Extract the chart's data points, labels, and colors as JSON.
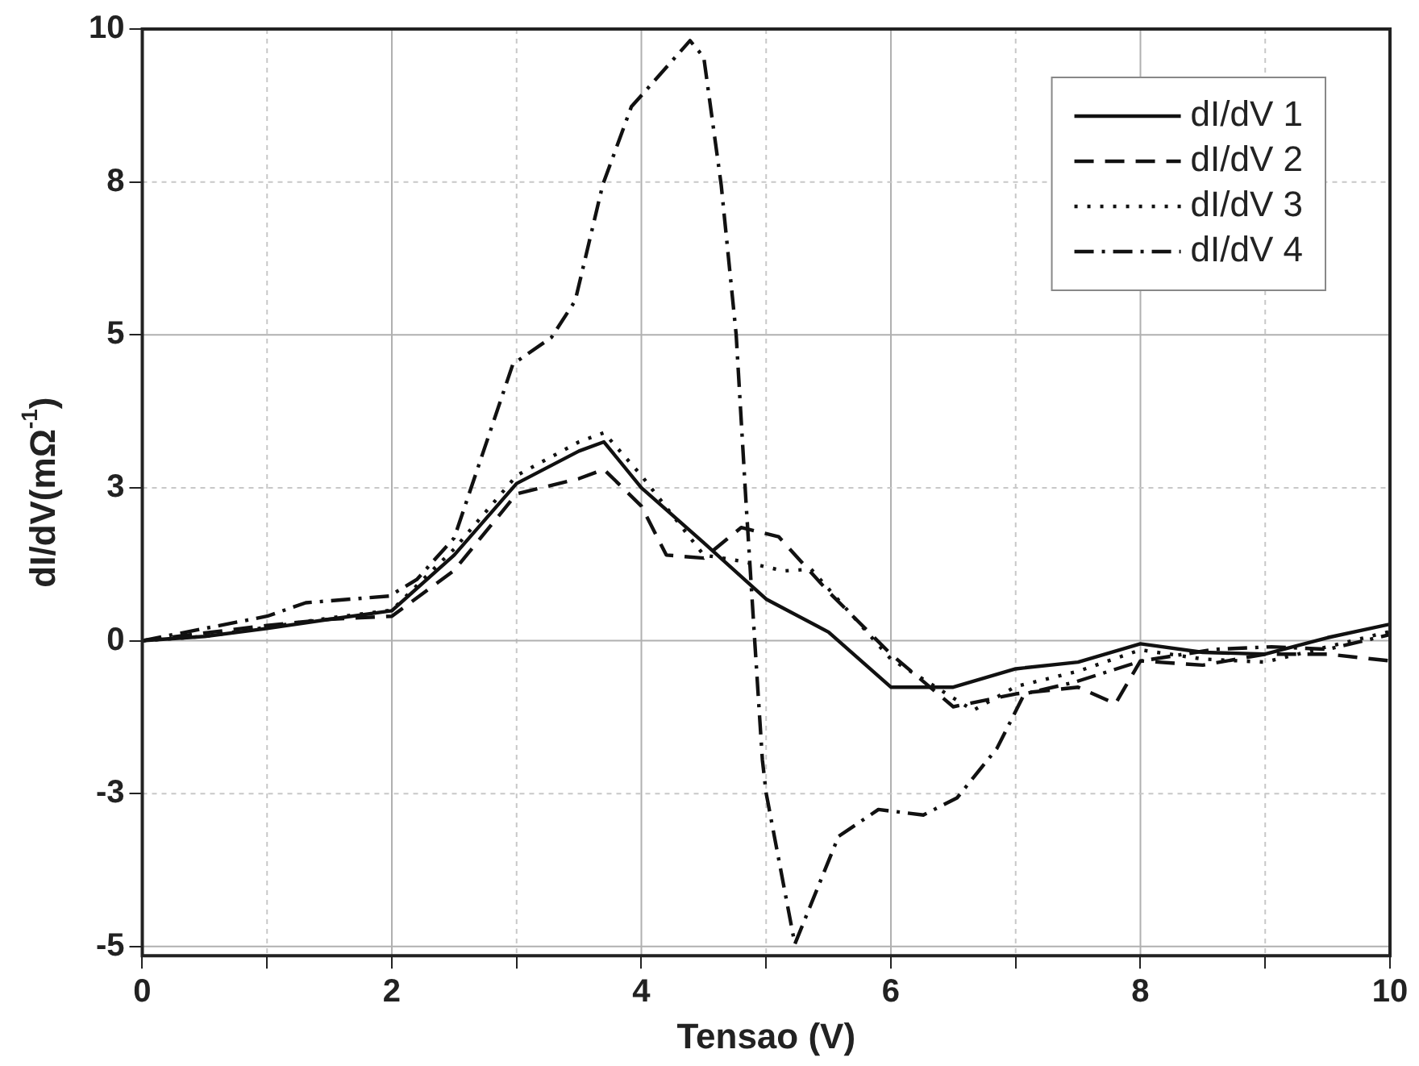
{
  "chart_data": {
    "type": "line",
    "xlabel": "Tensao (V)",
    "ylabel": "dI/dV(mΩ$^{-1}$)",
    "xlim": [
      0,
      10
    ],
    "ylim": [
      -5.15,
      10
    ],
    "xticks": [
      0,
      {
        "value": 1,
        "label": null
      },
      2,
      {
        "value": 3,
        "label": null
      },
      4,
      {
        "value": 5,
        "label": null
      },
      6,
      {
        "value": 7,
        "label": null
      },
      8,
      {
        "value": 9,
        "label": null
      },
      10
    ],
    "yticks": [
      {
        "value": -5,
        "label": "-5"
      },
      {
        "value": -2.5,
        "label": "-3"
      },
      0,
      {
        "value": 2.5,
        "label": "3"
      },
      5,
      {
        "value": 7.5,
        "label": "8"
      },
      10
    ],
    "grid": true,
    "legend": "top right",
    "marker": "none",
    "series": [
      {
        "name": "dI/dV 1",
        "color": "#111111",
        "line_style": "solid",
        "x": [
          0,
          0.5,
          1,
          1.5,
          2,
          2.5,
          3,
          3.5,
          3.7,
          4,
          4.5,
          5,
          5.5,
          6,
          6.5,
          7,
          7.5,
          8,
          8.5,
          9,
          9.5,
          10
        ],
        "values": [
          0,
          0.07,
          0.2,
          0.35,
          0.49,
          1.4,
          2.57,
          3.1,
          3.25,
          2.5,
          1.6,
          0.68,
          0.14,
          -0.76,
          -0.76,
          -0.46,
          -0.35,
          -0.05,
          -0.19,
          -0.22,
          0.05,
          0.27
        ]
      },
      {
        "name": "dI/dV 2",
        "color": "#111111",
        "line_style": "dashed",
        "x": [
          0,
          1,
          1.5,
          2,
          2.5,
          3,
          3.5,
          3.7,
          4,
          4.2,
          4.5,
          4.8,
          5.1,
          5.5,
          6,
          6.5,
          7,
          7.5,
          7.8,
          8,
          8.5,
          9,
          9.5,
          10
        ],
        "values": [
          0,
          0.25,
          0.35,
          0.4,
          1.15,
          2.4,
          2.65,
          2.8,
          2.2,
          1.4,
          1.35,
          1.85,
          1.7,
          0.8,
          -0.22,
          -1.08,
          -0.87,
          -0.76,
          -1.03,
          -0.33,
          -0.4,
          -0.22,
          -0.22,
          -0.33
        ]
      },
      {
        "name": "dI/dV 3",
        "color": "#111111",
        "line_style": "dotted",
        "x": [
          0,
          0.5,
          1,
          1.5,
          2,
          2.5,
          3,
          3.5,
          3.7,
          4,
          4.5,
          4.8,
          5.14,
          5.36,
          6,
          6.66,
          7,
          7.5,
          8,
          8.5,
          9,
          9.5,
          10
        ],
        "values": [
          0,
          0.07,
          0.22,
          0.37,
          0.5,
          1.5,
          2.7,
          3.25,
          3.4,
          2.7,
          1.4,
          1.3,
          1.14,
          1.17,
          -0.3,
          -1.14,
          -0.75,
          -0.5,
          -0.15,
          -0.3,
          -0.35,
          -0.1,
          0.15
        ]
      },
      {
        "name": "dI/dV 4",
        "color": "#111111",
        "line_style": "dashdot",
        "x": [
          0,
          1,
          1.31,
          1.98,
          2.2,
          2.5,
          2.97,
          3.28,
          3.47,
          3.69,
          3.92,
          4.19,
          4.39,
          4.5,
          4.64,
          4.76,
          4.84,
          4.91,
          4.97,
          5.0,
          5.23,
          5.58,
          5.9,
          6.26,
          6.53,
          6.85,
          7.07,
          7.47,
          8.01,
          8.6,
          9.05,
          9.5,
          10
        ],
        "values": [
          0,
          0.4,
          0.62,
          0.73,
          1.0,
          1.68,
          4.52,
          4.96,
          5.56,
          7.45,
          8.73,
          9.35,
          9.81,
          9.54,
          7.45,
          5.0,
          2.22,
          -0.05,
          -1.95,
          -2.49,
          -4.96,
          -3.2,
          -2.76,
          -2.85,
          -2.57,
          -1.76,
          -0.87,
          -0.68,
          -0.33,
          -0.14,
          -0.1,
          -0.14,
          0.1
        ]
      }
    ]
  }
}
